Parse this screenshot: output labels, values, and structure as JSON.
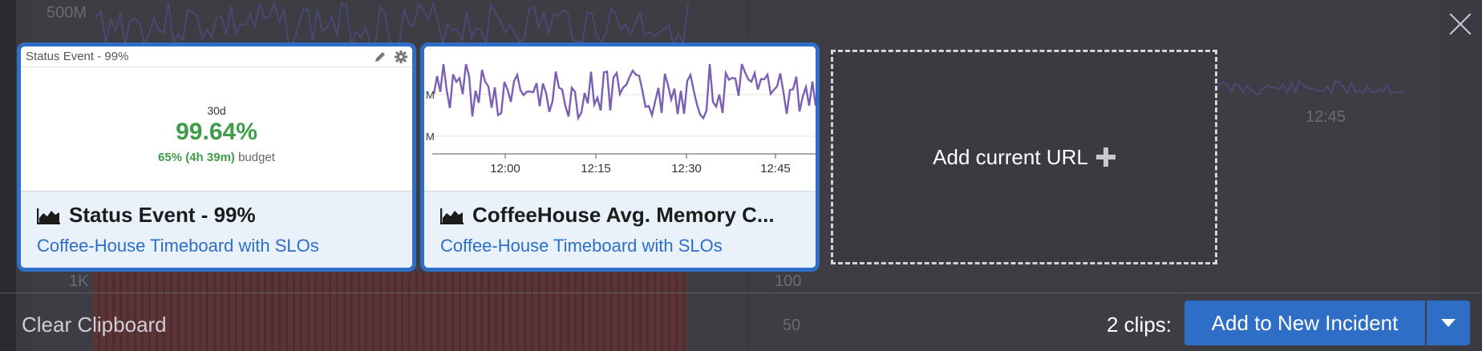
{
  "background": {
    "axis_labels": [
      "500M",
      "1K",
      "100",
      "50",
      "12:45"
    ]
  },
  "clips": [
    {
      "widget": {
        "header": "Status Event - 99%",
        "window": "30d",
        "value": "99.64%",
        "budget_value": "65% (4h 39m)",
        "budget_label": "budget"
      },
      "title": "Status Event - 99%",
      "subtitle": "Coffee-House Timeboard with SLOs"
    },
    {
      "widget": {
        "x_ticks": [
          "12:00",
          "12:15",
          "12:30",
          "12:45"
        ],
        "y_ticks": [
          "M",
          "M"
        ],
        "line_color": "#7b5fb5"
      },
      "title": "CoffeeHouse Avg. Memory C...",
      "subtitle": "Coffee-House Timeboard with SLOs"
    }
  ],
  "add_url": {
    "label": "Add current URL"
  },
  "footer": {
    "clear_label": "Clear Clipboard",
    "clips_count": "2 clips:",
    "add_button": "Add to New Incident"
  },
  "colors": {
    "accent": "#2e6ec6",
    "success": "#3e9c4a"
  }
}
